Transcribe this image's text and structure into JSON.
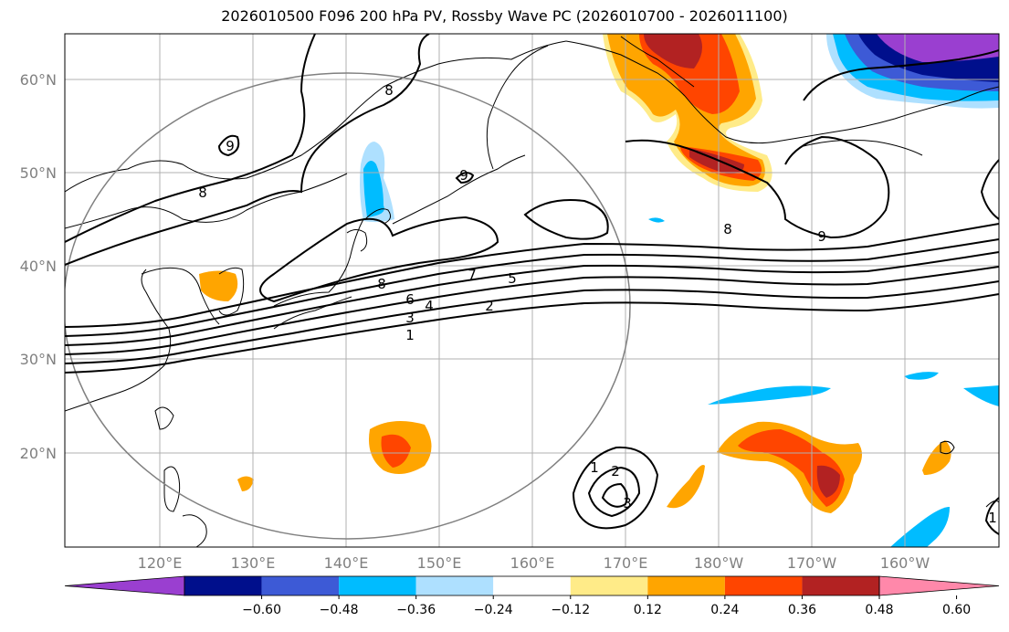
{
  "title": "2026010500 F096 200 hPa PV, Rossby Wave PC (2026010700 - 2026011100)",
  "lon_ticks": [
    "120°E",
    "130°E",
    "140°E",
    "150°E",
    "160°E",
    "170°E",
    "180°W",
    "170°W",
    "160°W"
  ],
  "lat_ticks": [
    "60°N",
    "50°N",
    "40°N",
    "30°N",
    "20°N"
  ],
  "colorbar": {
    "labels": [
      "−0.60",
      "−0.48",
      "−0.36",
      "−0.24",
      "−0.12",
      "0.12",
      "0.24",
      "0.36",
      "0.48",
      "0.60"
    ],
    "colors": [
      "#9a3fd0",
      "#000f8c",
      "#3d5ad6",
      "#00bcff",
      "#aee0ff",
      "#ffffff",
      "#ffeb88",
      "#ffa500",
      "#ff4500",
      "#b22222",
      "#ff88aa"
    ]
  },
  "contour_labels": [
    "1",
    "2",
    "3",
    "4",
    "5",
    "6",
    "7",
    "8",
    "8",
    "8",
    "8",
    "9",
    "9",
    "9",
    "1",
    "2",
    "3",
    "1"
  ]
}
